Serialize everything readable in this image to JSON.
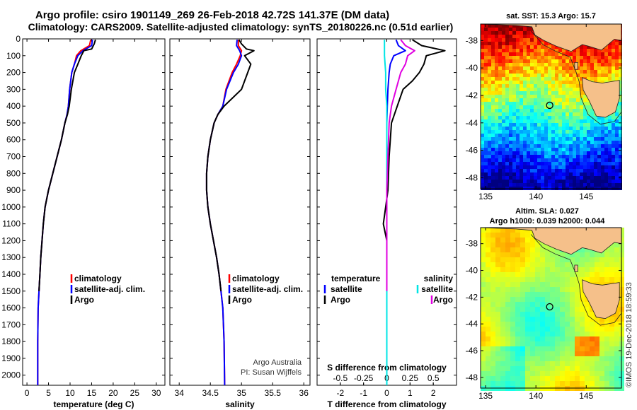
{
  "header": {
    "line1": "Argo profile: csiro 1901149_269 26-Feb-2018 42.72S 141.37E (DM data)",
    "line2": "Climatology: CARS2009. Satellite-adjusted climatology: synTS_20180226.nc (0.51d earlier)"
  },
  "colors": {
    "climatology": "#ff0000",
    "satellite": "#0000ff",
    "argo": "#000000",
    "satellite_salinity": "#00e5e5",
    "argo_salinity": "#e000e0",
    "land": "#f5c08a"
  },
  "chart_data": [
    {
      "type": "line",
      "id": "temperature",
      "xlabel": "temperature (deg C)",
      "ylabel": "",
      "xlim": [
        -1,
        32
      ],
      "ylim": [
        2060,
        0
      ],
      "xticks": [
        0,
        5,
        10,
        15,
        20,
        25,
        30
      ],
      "yticks": [
        0,
        100,
        200,
        300,
        400,
        500,
        600,
        700,
        800,
        900,
        1000,
        1100,
        1200,
        1300,
        1400,
        1500,
        1600,
        1700,
        1800,
        1900,
        2000
      ],
      "legend": [
        "climatology",
        "satellite-adj. clim.",
        "Argo"
      ],
      "series": [
        {
          "name": "climatology",
          "color": "#ff0000",
          "x": [
            14.8,
            14.5,
            12.5,
            11.5,
            11.0,
            10.4,
            9.9,
            9.6,
            9.3,
            8.8,
            8.0,
            7.0,
            6.0,
            5.0,
            4.2,
            3.8,
            3.5,
            3.2,
            3.0,
            2.8,
            2.6,
            2.5,
            2.5
          ],
          "y": [
            5,
            40,
            70,
            100,
            150,
            200,
            300,
            400,
            450,
            500,
            600,
            700,
            800,
            900,
            1000,
            1100,
            1200,
            1300,
            1400,
            1500,
            1600,
            1800,
            2060
          ]
        },
        {
          "name": "satellite-adj. clim.",
          "color": "#0000ff",
          "x": [
            15.2,
            15.0,
            13.0,
            11.8,
            11.0,
            10.4,
            9.9,
            9.6,
            9.3,
            8.8,
            8.0,
            7.0,
            6.0,
            5.0,
            4.2,
            3.8,
            3.5,
            3.2,
            3.0,
            2.8,
            2.6,
            2.5,
            2.5
          ],
          "y": [
            5,
            40,
            70,
            100,
            150,
            200,
            300,
            400,
            450,
            500,
            600,
            700,
            800,
            900,
            1000,
            1100,
            1200,
            1300,
            1400,
            1500,
            1600,
            1800,
            2060
          ]
        },
        {
          "name": "Argo",
          "color": "#000000",
          "x": [
            15.9,
            15.6,
            15.0,
            13.2,
            12.6,
            11.8,
            11.0,
            10.3,
            9.8,
            9.4,
            8.8,
            8.0,
            7.0,
            6.0,
            5.0,
            4.2,
            3.8,
            3.5,
            3.2,
            3.0,
            2.8
          ],
          "y": [
            5,
            30,
            60,
            70,
            100,
            150,
            200,
            300,
            400,
            450,
            500,
            600,
            700,
            800,
            900,
            1000,
            1100,
            1200,
            1300,
            1400,
            1500
          ]
        }
      ]
    },
    {
      "type": "line",
      "id": "salinity",
      "xlabel": "salinity",
      "ylabel": "",
      "xlim": [
        33.85,
        36.1
      ],
      "ylim": [
        2060,
        0
      ],
      "xticks": [
        34,
        34.5,
        35,
        35.5,
        36
      ],
      "xticklabels": [
        "34",
        "34.5",
        "35",
        "35.5",
        "36"
      ],
      "legend": [
        "climatology",
        "satellite-adj. clim.",
        "Argo"
      ],
      "annotations": [
        "Argo Australia",
        "PI: Susan Wijffels"
      ],
      "series": [
        {
          "name": "climatology",
          "color": "#ff0000",
          "x": [
            34.95,
            34.95,
            35.0,
            34.98,
            34.92,
            34.85,
            34.75,
            34.7,
            34.62,
            34.56,
            34.5,
            34.46,
            34.44,
            34.44,
            34.46,
            34.5,
            34.55,
            34.6,
            34.64,
            34.67,
            34.7,
            34.72,
            34.73
          ],
          "y": [
            5,
            40,
            70,
            100,
            150,
            200,
            300,
            400,
            450,
            500,
            600,
            700,
            800,
            900,
            1000,
            1100,
            1200,
            1300,
            1400,
            1500,
            1600,
            1800,
            2060
          ]
        },
        {
          "name": "satellite-adj. clim.",
          "color": "#0000ff",
          "x": [
            34.93,
            34.92,
            34.97,
            35.0,
            34.95,
            34.87,
            34.76,
            34.7,
            34.62,
            34.56,
            34.5,
            34.46,
            34.44,
            34.44,
            34.46,
            34.5,
            34.55,
            34.6,
            34.64,
            34.67,
            34.7,
            34.72,
            34.73
          ],
          "y": [
            5,
            40,
            70,
            100,
            150,
            200,
            300,
            400,
            450,
            500,
            600,
            700,
            800,
            900,
            1000,
            1100,
            1200,
            1300,
            1400,
            1500,
            1600,
            1800,
            2060
          ]
        },
        {
          "name": "Argo",
          "color": "#000000",
          "x": [
            34.96,
            35.0,
            35.08,
            35.2,
            35.05,
            35.15,
            35.1,
            35.0,
            34.72,
            34.62,
            34.56,
            34.5,
            34.46,
            34.44,
            34.44,
            34.46,
            34.5,
            34.55,
            34.6,
            34.64,
            34.67
          ],
          "y": [
            5,
            30,
            60,
            70,
            100,
            150,
            200,
            300,
            400,
            450,
            500,
            600,
            700,
            800,
            900,
            1000,
            1100,
            1200,
            1300,
            1400,
            1500
          ]
        }
      ]
    },
    {
      "type": "line",
      "id": "difference",
      "xlabel": "T difference from climatology",
      "x2label": "S difference from climatology",
      "ylabel": "",
      "xlim": [
        -3,
        3
      ],
      "ylim": [
        2060,
        0
      ],
      "xticks": [
        -2,
        -1,
        0,
        1,
        2
      ],
      "x2ticks": [
        -0.5,
        -0.25,
        0,
        0.25,
        0.5
      ],
      "x2ticklabels": [
        "-0.5",
        "-0.25",
        "0",
        "0.25",
        "0.5"
      ],
      "legend_titles": [
        "temperature",
        "salinity"
      ],
      "legend": [
        "satellite",
        "Argo",
        "satellite",
        "Argo"
      ],
      "series": [
        {
          "name": "satellite",
          "color": "#0000ff",
          "x": [
            0.4,
            0.5,
            0.8,
            0.3,
            0.15,
            0.1,
            0.05,
            0.02,
            0.0,
            0.0,
            0.0,
            0.0,
            0.0,
            0.0,
            0.0,
            0.0
          ],
          "y": [
            5,
            40,
            70,
            100,
            150,
            200,
            300,
            400,
            500,
            600,
            800,
            1000,
            1200,
            1400,
            1600,
            2060
          ]
        },
        {
          "name": "Argo",
          "color": "#000000",
          "x": [
            1.1,
            1.5,
            2.5,
            1.7,
            1.6,
            1.4,
            1.1,
            0.7,
            0.45,
            0.2,
            0.1,
            0.05,
            -0.05,
            -0.15,
            0.0,
            0.0,
            0.0
          ],
          "y": [
            5,
            40,
            70,
            100,
            150,
            200,
            250,
            300,
            400,
            500,
            700,
            900,
            1000,
            1100,
            1200,
            1400,
            1500
          ]
        },
        {
          "name": "satellite",
          "color": "#00e5e5",
          "x": [
            -0.1,
            -0.1,
            -0.1,
            -0.05,
            -0.05,
            0.0,
            0.0,
            0.0,
            0.0,
            0.0,
            0.0,
            0.0
          ],
          "y": [
            5,
            40,
            100,
            200,
            300,
            400,
            600,
            800,
            1000,
            1400,
            1800,
            2060
          ]
        },
        {
          "name": "Argo",
          "color": "#e000e0",
          "x": [
            0.6,
            0.8,
            1.2,
            0.9,
            0.8,
            0.6,
            0.4,
            0.2,
            0.1,
            0.05,
            0.0,
            0.0,
            0.0
          ],
          "y": [
            5,
            40,
            70,
            100,
            150,
            200,
            300,
            400,
            500,
            700,
            900,
            1100,
            1500
          ]
        }
      ]
    },
    {
      "type": "heatmap",
      "id": "sst-map",
      "title": "sat. SST: 15.3 Argo: 15.7",
      "xlim": [
        134.5,
        148.5
      ],
      "ylim": [
        -48.8,
        -36.8
      ],
      "xticks": [
        135,
        140,
        145
      ],
      "yticks": [
        -38,
        -40,
        -42,
        -44,
        -46,
        -48
      ],
      "marker": {
        "lon": 141.37,
        "lat": -42.72
      }
    },
    {
      "type": "heatmap",
      "id": "sla-map",
      "title": "Altim. SLA: 0.027",
      "subtitle": "Argo h1000: 0.039 h2000: 0.044",
      "xlim": [
        134.5,
        148.5
      ],
      "ylim": [
        -48.8,
        -36.8
      ],
      "xticks": [
        135,
        140,
        145
      ],
      "yticks": [
        -38,
        -40,
        -42,
        -44,
        -46,
        -48
      ],
      "marker": {
        "lon": 141.37,
        "lat": -42.72
      }
    }
  ],
  "credit": "©IMOS 19-Dec-2018 18:59:33"
}
